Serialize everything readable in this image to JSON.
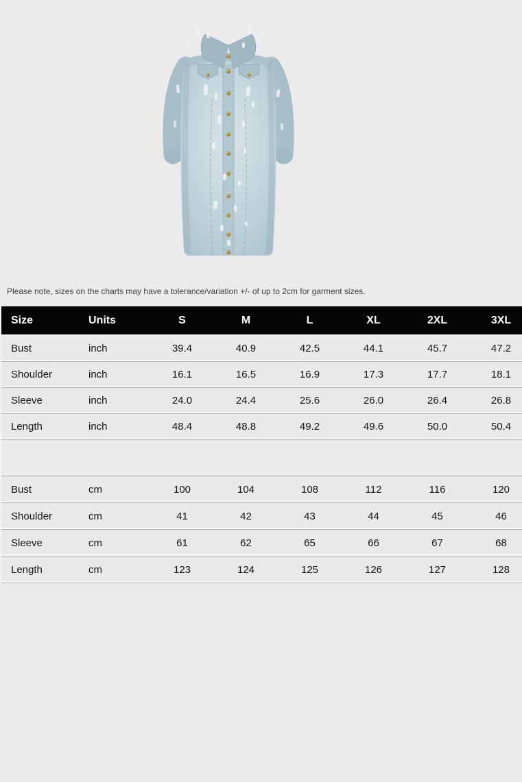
{
  "page": {
    "background_color": "#ebebeb",
    "note": "Please note, sizes on the charts may have a tolerance/variation +/- of up to 2cm for garment sizes."
  },
  "product_image": {
    "description": "Light-blue washed distressed denim longline button-front jacket, front view",
    "colors": {
      "denim_base": "#b2c8d2",
      "denim_shadow": "#92abb6",
      "denim_wash": "#dbe6ea",
      "distress_white": "#eef4f6",
      "button_brass": "#a5842f"
    }
  },
  "size_chart": {
    "header_bg": "#050505",
    "header_text_color": "#ffffff",
    "columns": [
      "Size",
      "Units",
      "S",
      "M",
      "L",
      "XL",
      "2XL",
      "3XL"
    ],
    "sections": [
      {
        "unit": "inch",
        "rows": [
          {
            "label": "Bust",
            "unit": "inch",
            "values": [
              "39.4",
              "40.9",
              "42.5",
              "44.1",
              "45.7",
              "47.2"
            ]
          },
          {
            "label": "Shoulder",
            "unit": "inch",
            "values": [
              "16.1",
              "16.5",
              "16.9",
              "17.3",
              "17.7",
              "18.1"
            ]
          },
          {
            "label": "Sleeve",
            "unit": "inch",
            "values": [
              "24.0",
              "24.4",
              "25.6",
              "26.0",
              "26.4",
              "26.8"
            ]
          },
          {
            "label": "Length",
            "unit": "inch",
            "values": [
              "48.4",
              "48.8",
              "49.2",
              "49.6",
              "50.0",
              "50.4"
            ]
          }
        ]
      },
      {
        "unit": "cm",
        "rows": [
          {
            "label": "Bust",
            "unit": "cm",
            "values": [
              "100",
              "104",
              "108",
              "112",
              "116",
              "120"
            ]
          },
          {
            "label": "Shoulder",
            "unit": "cm",
            "values": [
              "41",
              "42",
              "43",
              "44",
              "45",
              "46"
            ]
          },
          {
            "label": "Sleeve",
            "unit": "cm",
            "values": [
              "61",
              "62",
              "65",
              "66",
              "67",
              "68"
            ]
          },
          {
            "label": "Length",
            "unit": "cm",
            "values": [
              "123",
              "124",
              "125",
              "126",
              "127",
              "128"
            ]
          }
        ]
      }
    ]
  }
}
